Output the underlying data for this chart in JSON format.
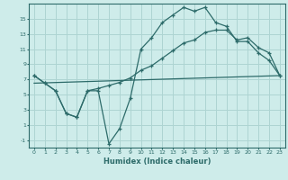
{
  "xlabel": "Humidex (Indice chaleur)",
  "background_color": "#ceecea",
  "grid_color": "#aed4d2",
  "line_color": "#2d6b6a",
  "xlim": [
    -0.5,
    23.5
  ],
  "ylim": [
    -2.0,
    17.0
  ],
  "xticks": [
    0,
    1,
    2,
    3,
    4,
    5,
    6,
    7,
    8,
    9,
    10,
    11,
    12,
    13,
    14,
    15,
    16,
    17,
    18,
    19,
    20,
    21,
    22,
    23
  ],
  "yticks": [
    -1,
    1,
    3,
    5,
    7,
    9,
    11,
    13,
    15
  ],
  "line1_x": [
    0,
    1,
    2,
    3,
    4,
    5,
    6,
    7,
    8,
    9,
    10,
    11,
    12,
    13,
    14,
    15,
    16,
    17,
    18,
    19,
    20,
    21,
    22,
    23
  ],
  "line1_y": [
    7.5,
    6.5,
    5.5,
    2.5,
    2.0,
    5.5,
    5.5,
    -1.5,
    0.5,
    4.5,
    11.0,
    12.5,
    14.5,
    15.5,
    16.5,
    16.0,
    16.5,
    14.5,
    14.0,
    12.0,
    12.0,
    10.5,
    9.5,
    7.5
  ],
  "line2_x": [
    0,
    1,
    2,
    3,
    4,
    5,
    6,
    7,
    8,
    9,
    10,
    11,
    12,
    13,
    14,
    15,
    16,
    17,
    18,
    19,
    20,
    21,
    22,
    23
  ],
  "line2_y": [
    7.5,
    6.5,
    5.5,
    2.5,
    2.0,
    5.5,
    5.8,
    6.2,
    6.6,
    7.2,
    8.2,
    8.8,
    9.8,
    10.8,
    11.8,
    12.2,
    13.2,
    13.5,
    13.5,
    12.2,
    12.5,
    11.2,
    10.5,
    7.5
  ],
  "line3_x": [
    0,
    23
  ],
  "line3_y": [
    6.5,
    7.5
  ]
}
